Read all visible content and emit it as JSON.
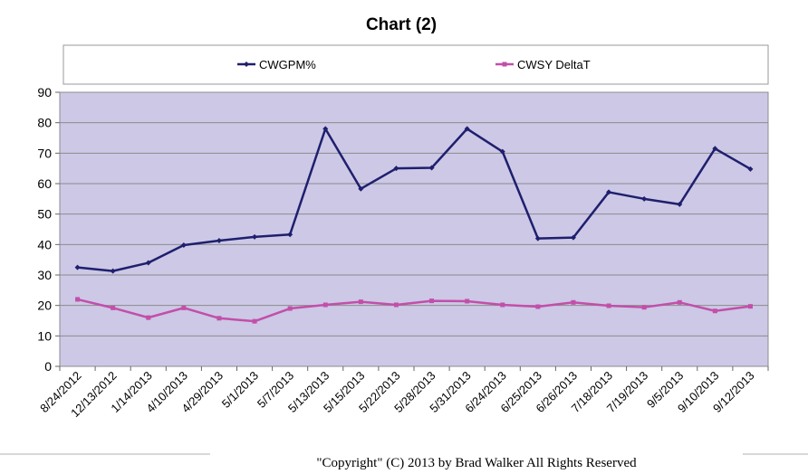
{
  "chart_data": {
    "type": "line",
    "title": "Chart (2)",
    "xlabel": "",
    "ylabel": "",
    "ylim": [
      0,
      90
    ],
    "yticks": [
      0,
      10,
      20,
      30,
      40,
      50,
      60,
      70,
      80,
      90
    ],
    "grid": "horizontal",
    "legend_position": "top",
    "plot_background": "#ccc8e6",
    "categories": [
      "8/24/2012",
      "12/13/2012",
      "1/14/2013",
      "4/10/2013",
      "4/29/2013",
      "5/1/2013",
      "5/7/2013",
      "5/13/2013",
      "5/15/2013",
      "5/22/2013",
      "5/28/2013",
      "5/31/2013",
      "6/24/2013",
      "6/25/2013",
      "6/26/2013",
      "7/18/2013",
      "7/19/2013",
      "9/5/2013",
      "9/10/2013",
      "9/12/2013"
    ],
    "series": [
      {
        "name": "CWGPM%",
        "color": "#1f1f6e",
        "marker": "diamond",
        "values": [
          32.5,
          31.3,
          34,
          39.8,
          41.3,
          42.5,
          43.3,
          78,
          58.3,
          65,
          65.2,
          78,
          70.5,
          42,
          42.3,
          57.2,
          55,
          53.2,
          71.5,
          64.8
        ]
      },
      {
        "name": "CWSY DeltaT",
        "color": "#c24fa9",
        "marker": "square",
        "values": [
          22,
          19.2,
          16,
          19.2,
          15.8,
          14.8,
          19,
          20.2,
          21.2,
          20.2,
          21.5,
          21.4,
          20.2,
          19.6,
          21,
          19.9,
          19.4,
          21,
          18.2,
          19.7
        ]
      }
    ]
  },
  "footer": {
    "copyright": "\"Copyright\" (C) 2013 by Brad Walker  All Rights Reserved"
  }
}
